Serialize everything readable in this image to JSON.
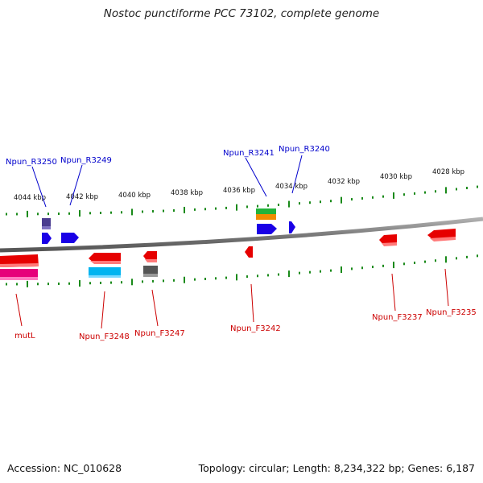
{
  "title": "Nostoc punctiforme PCC 73102, complete genome",
  "footer": {
    "accession": "Accession: NC_010628",
    "summary": "Topology: circular; Length: 8,234,322 bp; Genes: 6,187"
  },
  "colors": {
    "forward_label": "#0000cc",
    "reverse_label": "#cc0000",
    "tick": "#1a8a1a",
    "backbone": "#808080"
  },
  "scale_labels": [
    "4044 kbp",
    "4042 kbp",
    "4040 kbp",
    "4038 kbp",
    "4036 kbp",
    "4034 kbp",
    "4032 kbp",
    "4030 kbp",
    "4028 kbp"
  ],
  "gene_labels": {
    "forward": [
      "Npun_R3250",
      "Npun_R3249",
      "Npun_R3241",
      "Npun_R3240"
    ],
    "reverse": [
      "mutL",
      "Npun_F3248",
      "Npun_F3247",
      "Npun_F3242",
      "Npun_F3237",
      "Npun_F3235"
    ]
  },
  "features": [
    {
      "name": "feature-forward-r3250",
      "strand": "+",
      "color": "#1a00e6"
    },
    {
      "name": "feature-forward-r3249",
      "strand": "+",
      "color": "#1a00e6"
    },
    {
      "name": "feature-forward-r3241",
      "strand": "+",
      "color": "#1a00e6"
    },
    {
      "name": "feature-forward-r3240",
      "strand": "+",
      "color": "#1a00e6"
    },
    {
      "name": "feature-forward-small-purple",
      "strand": "+",
      "color": "#4a3d8f"
    },
    {
      "name": "feature-forward-green",
      "strand": "+",
      "color": "#22b33a"
    },
    {
      "name": "feature-forward-orange",
      "strand": "+",
      "color": "#f08c00"
    },
    {
      "name": "feature-reverse-mutl",
      "strand": "-",
      "color": "#e60000"
    },
    {
      "name": "feature-reverse-mutl-pink",
      "strand": "-",
      "color": "#e6007a"
    },
    {
      "name": "feature-reverse-f3248",
      "strand": "-",
      "color": "#e60000"
    },
    {
      "name": "feature-reverse-f3248-cyan",
      "strand": "-",
      "color": "#00b4f0"
    },
    {
      "name": "feature-reverse-f3247",
      "strand": "-",
      "color": "#e60000"
    },
    {
      "name": "feature-reverse-f3247-gray",
      "strand": "-",
      "color": "#555555"
    },
    {
      "name": "feature-reverse-f3242",
      "strand": "-",
      "color": "#e60000"
    },
    {
      "name": "feature-reverse-f3237",
      "strand": "-",
      "color": "#e60000"
    },
    {
      "name": "feature-reverse-f3235",
      "strand": "-",
      "color": "#e60000"
    }
  ]
}
